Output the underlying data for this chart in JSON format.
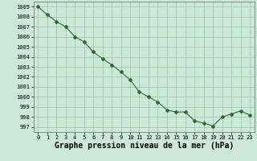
{
  "hours": [
    0,
    1,
    2,
    3,
    4,
    5,
    6,
    7,
    8,
    9,
    10,
    11,
    12,
    13,
    14,
    15,
    16,
    17,
    18,
    19,
    20,
    21,
    22,
    23
  ],
  "pressure": [
    1009.0,
    1008.2,
    1007.5,
    1007.0,
    1006.0,
    1005.5,
    1004.5,
    1003.8,
    1003.2,
    1002.5,
    1001.7,
    1000.5,
    1000.0,
    999.5,
    998.7,
    998.5,
    998.5,
    997.6,
    997.4,
    997.1,
    998.0,
    998.3,
    998.6,
    998.2
  ],
  "line_color": "#2d6b2d",
  "marker": "D",
  "marker_size": 2,
  "bg_color": "#cce8d8",
  "grid_color": "#99c4aa",
  "xlabel": "Graphe pression niveau de la mer (hPa)",
  "xlabel_fontsize": 7,
  "ytick_fontsize": 5,
  "xtick_fontsize": 5,
  "ylabel_ticks": [
    997,
    998,
    999,
    1000,
    1001,
    1002,
    1003,
    1004,
    1005,
    1006,
    1007,
    1008,
    1009
  ],
  "ylim": [
    996.5,
    1009.5
  ],
  "xlim": [
    -0.5,
    23.5
  ],
  "xticks": [
    0,
    1,
    2,
    3,
    4,
    5,
    6,
    7,
    8,
    9,
    10,
    11,
    12,
    13,
    14,
    15,
    16,
    17,
    18,
    19,
    20,
    21,
    22,
    23
  ]
}
